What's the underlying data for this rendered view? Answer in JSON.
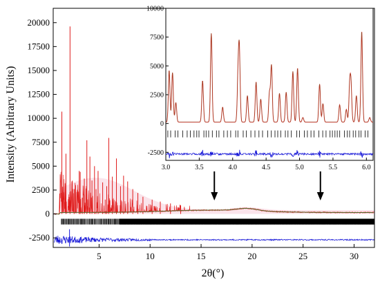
{
  "chart_data": [
    {
      "id": "main",
      "type": "line",
      "xlabel": "2θ(°)",
      "ylabel": "Intensity (Arbitrary Units)",
      "xlim": [
        0.5,
        32
      ],
      "ylim": [
        -3500,
        21500
      ],
      "xticks": [
        5,
        10,
        15,
        20,
        25,
        30
      ],
      "yticks": [
        -2500,
        0,
        2500,
        5000,
        7500,
        10000,
        12500,
        15000,
        17500,
        20000
      ],
      "colors": {
        "observed": "#e01b1b",
        "calculated": "#556b2f",
        "difference": "#1a1ad8",
        "bragg_ticks": "#000000",
        "shading": "#f6c9d8"
      },
      "peaks": [
        {
          "x": 1.35,
          "y": 10700
        },
        {
          "x": 1.75,
          "y": 6300
        },
        {
          "x": 2.15,
          "y": 19600
        },
        {
          "x": 2.55,
          "y": 2600
        },
        {
          "x": 3.05,
          "y": 4500
        },
        {
          "x": 3.15,
          "y": 4400
        },
        {
          "x": 3.35,
          "y": 1700
        },
        {
          "x": 3.55,
          "y": 3700
        },
        {
          "x": 3.8,
          "y": 7700
        },
        {
          "x": 4.1,
          "y": 6000
        },
        {
          "x": 4.3,
          "y": 3500
        },
        {
          "x": 4.55,
          "y": 5000
        },
        {
          "x": 4.7,
          "y": 2600
        },
        {
          "x": 4.9,
          "y": 4500
        },
        {
          "x": 5.35,
          "y": 3300
        },
        {
          "x": 5.6,
          "y": 1500
        },
        {
          "x": 5.75,
          "y": 2900
        },
        {
          "x": 5.95,
          "y": 7950
        },
        {
          "x": 6.3,
          "y": 3900
        },
        {
          "x": 6.7,
          "y": 5800
        },
        {
          "x": 7.1,
          "y": 2900
        },
        {
          "x": 7.4,
          "y": 4000
        },
        {
          "x": 7.8,
          "y": 3400
        },
        {
          "x": 8.3,
          "y": 2600
        },
        {
          "x": 8.8,
          "y": 2200
        },
        {
          "x": 9.3,
          "y": 1800
        },
        {
          "x": 10.2,
          "y": 1500
        },
        {
          "x": 11.0,
          "y": 1300
        },
        {
          "x": 12.0,
          "y": 1100
        },
        {
          "x": 13.0,
          "y": 900
        }
      ],
      "arrows_at_x": [
        16.3,
        26.7
      ]
    },
    {
      "id": "inset",
      "type": "line",
      "xlim": [
        3.0,
        6.1
      ],
      "ylim": [
        -3200,
        10000
      ],
      "xticks": [
        3.0,
        3.5,
        4.0,
        4.5,
        5.0,
        5.5,
        6.0
      ],
      "xtick_labels": [
        "3.0",
        "3.5",
        "4.0",
        "4.5",
        "5.0",
        "5.5",
        "6.0"
      ],
      "yticks": [
        -2500,
        0,
        2500,
        5000,
        7500,
        10000
      ],
      "peaks": [
        {
          "x": 3.05,
          "y": 4500
        },
        {
          "x": 3.1,
          "y": 4300
        },
        {
          "x": 3.15,
          "y": 1700
        },
        {
          "x": 3.55,
          "y": 3600
        },
        {
          "x": 3.68,
          "y": 7700
        },
        {
          "x": 3.85,
          "y": 1300
        },
        {
          "x": 4.08,
          "y": 3700
        },
        {
          "x": 4.1,
          "y": 5950
        },
        {
          "x": 4.22,
          "y": 2300
        },
        {
          "x": 4.35,
          "y": 3500
        },
        {
          "x": 4.42,
          "y": 2000
        },
        {
          "x": 4.55,
          "y": 2500
        },
        {
          "x": 4.58,
          "y": 4900
        },
        {
          "x": 4.7,
          "y": 2500
        },
        {
          "x": 4.8,
          "y": 2600
        },
        {
          "x": 4.9,
          "y": 4400
        },
        {
          "x": 4.97,
          "y": 4700
        },
        {
          "x": 5.05,
          "y": 400
        },
        {
          "x": 5.3,
          "y": 3300
        },
        {
          "x": 5.35,
          "y": 1600
        },
        {
          "x": 5.6,
          "y": 1500
        },
        {
          "x": 5.7,
          "y": 1100
        },
        {
          "x": 5.75,
          "y": 3000
        },
        {
          "x": 5.77,
          "y": 3000
        },
        {
          "x": 5.85,
          "y": 2300
        },
        {
          "x": 5.93,
          "y": 7900
        },
        {
          "x": 6.05,
          "y": 400
        }
      ]
    }
  ]
}
